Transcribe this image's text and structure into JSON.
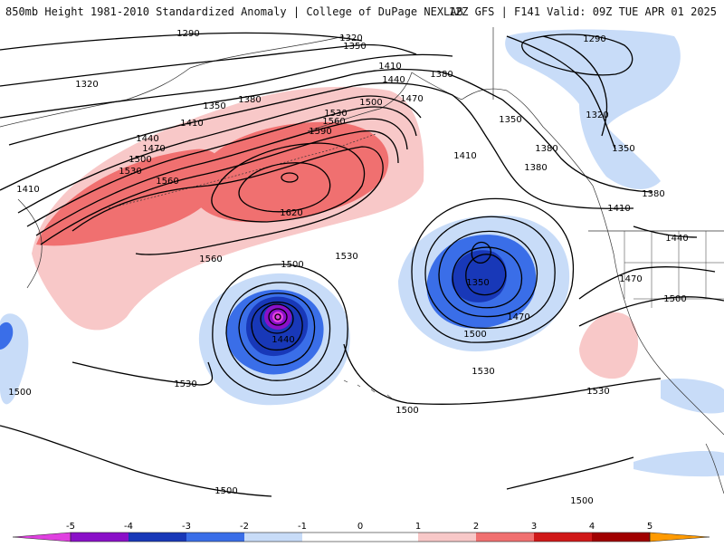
{
  "header": {
    "title": "850mb Height 1981-2010 Standardized Anomaly | College of DuPage NEXLAB",
    "valid": "12Z GFS | F141 Valid: 09Z TUE APR 01 2025"
  },
  "colors": {
    "neg5": "#e040e0",
    "neg4": "#8a10c8",
    "neg3": "#1838b8",
    "neg2": "#3a6ee8",
    "neg1": "#c8dcf8",
    "pos1": "#f8c8c8",
    "pos2": "#f07070",
    "pos3": "#d01818",
    "pos4": "#a00000",
    "pos5": "#ff9a00",
    "contour": "#000000",
    "coast": "#333333"
  },
  "colorbar": {
    "ticks": [
      "-5",
      "-4",
      "-3",
      "-2",
      "-1",
      "0",
      "1",
      "2",
      "3",
      "4",
      "5"
    ]
  },
  "height_labels": [
    "1290",
    "1320",
    "1350",
    "1290",
    "1320",
    "1320",
    "1350",
    "1410",
    "1380",
    "1440",
    "1350",
    "1380",
    "1410",
    "1500",
    "1470",
    "1530",
    "1560",
    "1590",
    "1440",
    "1470",
    "1500",
    "1530",
    "1410",
    "1560",
    "1620",
    "1350",
    "1410",
    "1380",
    "1380",
    "1380",
    "1410",
    "1440",
    "1470",
    "1500",
    "1500",
    "1530",
    "1560",
    "1350",
    "1470",
    "1500",
    "1440",
    "1530",
    "1530",
    "1500",
    "1530",
    "1500",
    "1500",
    "1500"
  ]
}
